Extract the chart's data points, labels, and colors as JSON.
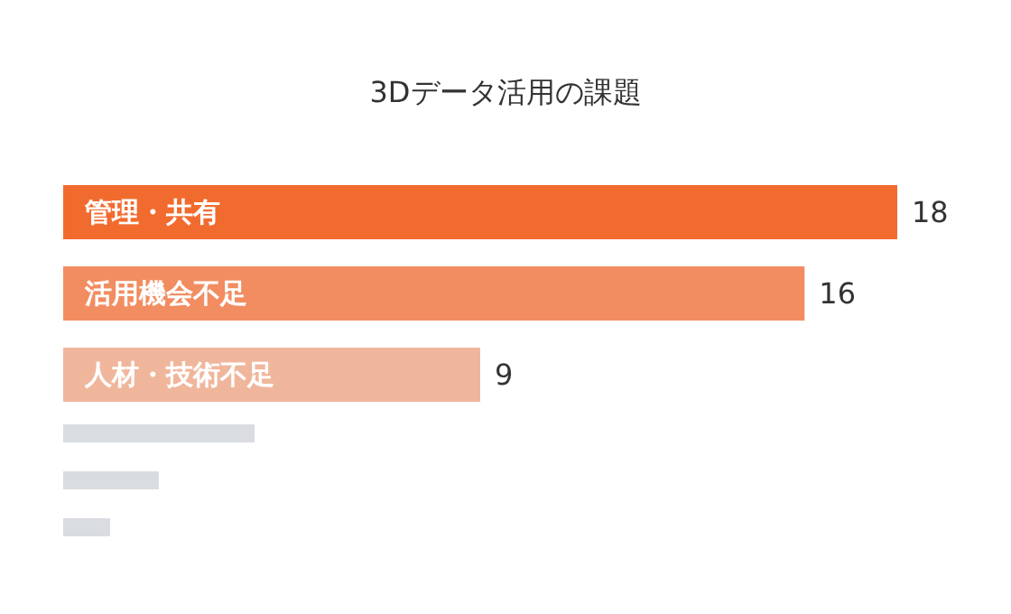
{
  "chart_data": {
    "type": "bar",
    "orientation": "horizontal",
    "title": "3Dデータ活用の課題",
    "categories": [
      "管理・共有",
      "活用機会不足",
      "人材・技術不足"
    ],
    "values": [
      18,
      16,
      9
    ],
    "colors": [
      "#f26b2e",
      "#f28d61",
      "#f0b69c"
    ],
    "data_labels": true
  }
}
